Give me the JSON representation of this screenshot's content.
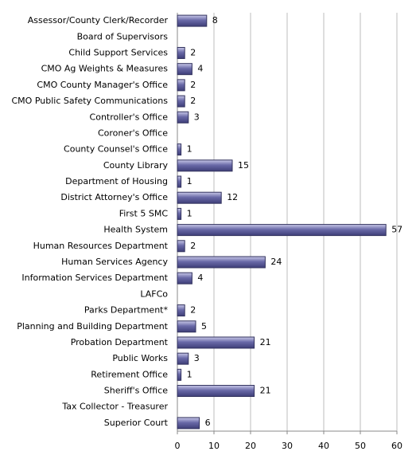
{
  "chart_data": {
    "type": "hbar",
    "categories": [
      "Assessor/County Clerk/Recorder",
      "Board of Supervisors",
      "Child Support Services",
      "CMO Ag Weights & Measures",
      "CMO County  Manager's Office",
      "CMO Public Safety Communications",
      "Controller's Office",
      "Coroner's Office",
      "County Counsel's Office",
      "County Library",
      "Department of Housing",
      "District Attorney's Office",
      "First 5 SMC",
      "Health System",
      "Human Resources Department",
      "Human Services Agency",
      "Information Services Department",
      "LAFCo",
      "Parks Department*",
      "Planning and Building Department",
      "Probation Department",
      "Public Works",
      "Retirement Office",
      "Sheriff's Office",
      "Tax Collector - Treasurer",
      "Superior Court"
    ],
    "values": [
      8,
      null,
      2,
      4,
      2,
      2,
      3,
      null,
      1,
      15,
      1,
      12,
      1,
      57,
      2,
      24,
      4,
      null,
      2,
      5,
      21,
      3,
      1,
      21,
      null,
      6
    ],
    "color": "#6a6aa8",
    "xlim": [
      0,
      60
    ],
    "xticks": [
      0,
      10,
      20,
      30,
      40,
      50,
      60
    ],
    "grid": true
  }
}
